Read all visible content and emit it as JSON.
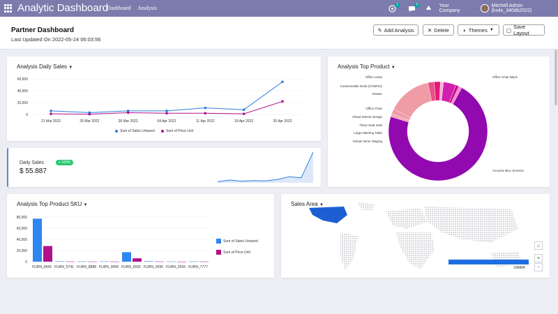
{
  "navbar": {
    "app_title": "Analytic Dashboard",
    "menu_dashboard": "Dashboard",
    "menu_analysis": "Analysis",
    "chat_badge": "1",
    "activity_badge": "5",
    "company": "Your Company",
    "user": "Mitchell Admin (ks4x_340db2022)",
    "color": "#7c7bad"
  },
  "header": {
    "title": "Partner Dashboard",
    "last_updated": "Last Updated On 2022-05-24 06:03:56",
    "buttons": {
      "add_analysis": "Add Analysis",
      "delete": "Delete",
      "themes": "Themes",
      "save_layout": "Save Layout"
    }
  },
  "daily_sales_chart": {
    "title": "Analysis Daily Sales",
    "legend": [
      "Sum of Sales Untaxed",
      "Sum of Price Unit"
    ]
  },
  "kpi": {
    "label": "Daily Sales",
    "value": "$ 55.887",
    "badge": "+ 100%"
  },
  "top_product": {
    "title": "Analysis Top Product",
    "labels": [
      "Office Lamp",
      "Customizable Desk (CONFIG)",
      "Drawer",
      "Office Chair",
      "Virtual Interior Design",
      "Three-Seat Sofa",
      "Large Meeting Table",
      "Virtual Home Staging",
      "Office Chair Black",
      "Acoustic Bloc Screens"
    ]
  },
  "sku_chart": {
    "title": "Analysis Top Product SKU",
    "legend": [
      "Sum of Sales Untaxed",
      "Sum of Price Unit"
    ]
  },
  "sales_area": {
    "title": "Sales Area",
    "bar_value": "108884",
    "zoom_in": "+",
    "zoom_out": "-"
  },
  "chart_data": [
    {
      "type": "line",
      "title": "Analysis Daily Sales",
      "categories": [
        "21 Mar 2022",
        "25 Mar 2022",
        "28 Mar 2022",
        "04 Apr 2022",
        "11 Apr 2022",
        "18 Apr 2022",
        "25 Apr 2022"
      ],
      "x_points": [
        "21 Mar 2022",
        "25 Mar 2022",
        "28 Mar 2022",
        "04 Apr 2022",
        "11 Apr 2022",
        "18 Apr 2022",
        "25 Apr 2022"
      ],
      "y_ticks": [
        "60,000",
        "40,000",
        "20,000",
        "0"
      ],
      "ylim": [
        0,
        60000
      ],
      "series": [
        {
          "name": "Sum of Sales Untaxed",
          "color": "#2e7de0",
          "values": [
            6000,
            3000,
            6000,
            6000,
            11000,
            8000,
            55000
          ]
        },
        {
          "name": "Sum of Price Unit",
          "color": "#b0128c",
          "values": [
            1000,
            500,
            3000,
            2000,
            2000,
            1000,
            22000
          ]
        }
      ]
    },
    {
      "type": "area",
      "title": "Daily Sales",
      "values": [
        2000,
        5000,
        3000,
        4000,
        3500,
        6000,
        11000,
        9000,
        55000
      ]
    },
    {
      "type": "pie",
      "title": "Analysis Top Product",
      "donut": true,
      "slices": [
        {
          "label": "Acoustic Bloc Screens",
          "value": 70,
          "color": "#9209b0"
        },
        {
          "label": "Office Chair Black",
          "value": 1,
          "color": "#f4a7b0"
        },
        {
          "label": "Office Lamp",
          "value": 1.5,
          "color": "#ee9aa8"
        },
        {
          "label": "Customizable Desk (CONFIG)",
          "value": 14,
          "color": "#ef9ca6"
        },
        {
          "label": "Drawer",
          "value": 2,
          "color": "#e84f86"
        },
        {
          "label": "Office Chair",
          "value": 2,
          "color": "#e8177f"
        },
        {
          "label": "Virtual Interior Design",
          "value": 1,
          "color": "#f3b4cd"
        },
        {
          "label": "Three-Seat Sofa",
          "value": 4,
          "color": "#d21fb0"
        },
        {
          "label": "Large Meeting Table",
          "value": 1,
          "color": "#c80f8c"
        },
        {
          "label": "Virtual Home Staging",
          "value": 1,
          "color": "#ff86c8"
        }
      ]
    },
    {
      "type": "bar",
      "title": "Analysis Top Product SKU",
      "categories": [
        "FURN_6666",
        "FURN_5741",
        "FURN_8888",
        "FURN_9999",
        "FURN_6555",
        "FURN_0096",
        "FURN_0269",
        "FURN_7777"
      ],
      "y_ticks": [
        "80,000",
        "60,000",
        "40,000",
        "20,000",
        "0"
      ],
      "ylim": [
        0,
        80000
      ],
      "series": [
        {
          "name": "Sum of Sales Untaxed",
          "color": "#2e86f0",
          "values": [
            77000,
            700,
            400,
            500,
            17000,
            800,
            300,
            400
          ]
        },
        {
          "name": "Sum of Price Unit",
          "color": "#b0128c",
          "values": [
            28000,
            300,
            200,
            200,
            6000,
            300,
            100,
            200
          ]
        }
      ]
    }
  ]
}
